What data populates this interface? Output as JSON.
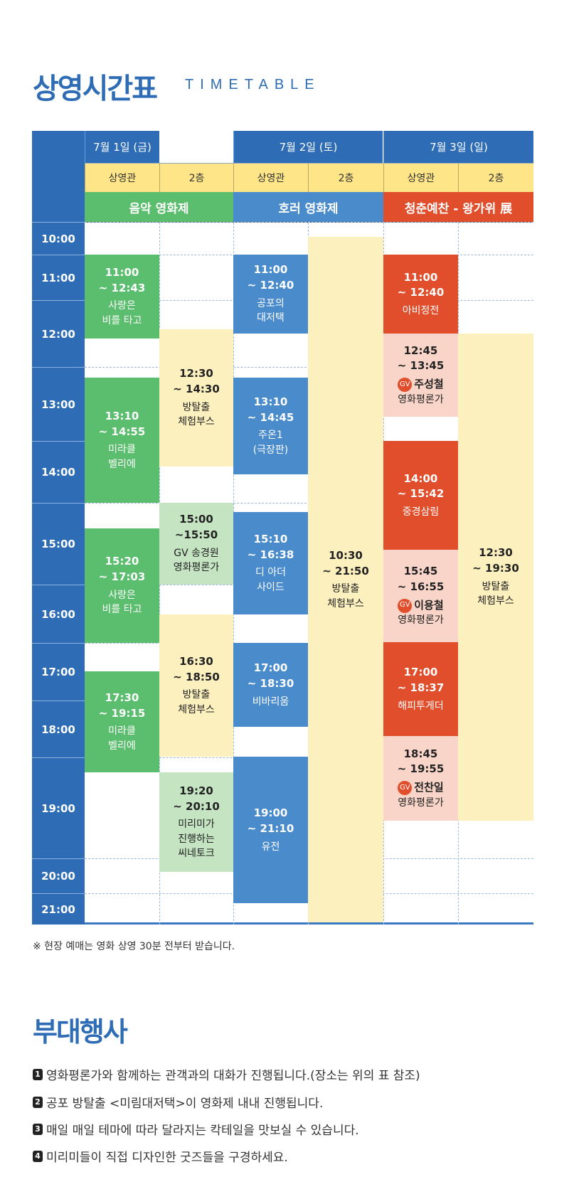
{
  "header": {
    "title": "상영시간표",
    "subtitle": "TIMETABLE"
  },
  "days": [
    {
      "date": "7월 1일 (금)",
      "venues": [
        "상영관",
        "2층"
      ],
      "festival": "음악 영화제"
    },
    {
      "date": "7월 2일 (토)",
      "venues": [
        "상영관",
        "2층"
      ],
      "festival": "호러 영화제"
    },
    {
      "date": "7월 3일 (일)",
      "venues": [
        "상영관",
        "2층"
      ],
      "festival": "청춘예찬 - 왕가위 展"
    }
  ],
  "colors": {
    "header_blue": "#2e6db5",
    "music_green": "#5bbd6e",
    "horror_blue": "#4a8bcc",
    "youth_red": "#e04e2c",
    "venue_yellow": "#fde588",
    "booth_yellow": "#fdf0bf",
    "talk_green": "#c4e4c2",
    "gv_pink": "#f8d5c8"
  },
  "hours": [
    "10:00",
    "11:00",
    "12:00",
    "13:00",
    "14:00",
    "15:00",
    "16:00",
    "17:00",
    "18:00",
    "19:00",
    "20:00",
    "21:00"
  ],
  "blocks": [
    {
      "style": "green",
      "start": "11:00",
      "end": "~ 12:43",
      "lines": [
        "사랑은",
        "비를 타고"
      ]
    },
    {
      "style": "green",
      "start": "13:10",
      "end": "~ 14:55",
      "lines": [
        "미라클",
        "벨리에"
      ]
    },
    {
      "style": "green",
      "start": "15:20",
      "end": "~ 17:03",
      "lines": [
        "사랑은",
        "비를 타고"
      ]
    },
    {
      "style": "green",
      "start": "17:30",
      "end": "~ 19:15",
      "lines": [
        "미라클",
        "벨리에"
      ]
    },
    {
      "style": "yellow",
      "start": "12:30",
      "end": "~ 14:30",
      "lines": [
        "방탈출",
        "체험부스"
      ]
    },
    {
      "style": "lgreen",
      "start": "15:00",
      "end": "~15:50",
      "lines": [
        "GV 송경원",
        "영화평론가"
      ]
    },
    {
      "style": "yellow",
      "start": "16:30",
      "end": "~ 18:50",
      "lines": [
        "방탈출",
        "체험부스"
      ]
    },
    {
      "style": "lgreen",
      "start": "19:20",
      "end": "~ 20:10",
      "lines": [
        "미리미가",
        "진행하는",
        "씨네토크"
      ]
    },
    {
      "style": "blue",
      "start": "11:00",
      "end": "~ 12:40",
      "lines": [
        "공포의",
        "대저택"
      ]
    },
    {
      "style": "blue",
      "start": "13:10",
      "end": "~ 14:45",
      "lines": [
        "주온1",
        "(극장판)"
      ]
    },
    {
      "style": "blue",
      "start": "15:10",
      "end": "~ 16:38",
      "lines": [
        "디 아더",
        "사이드"
      ]
    },
    {
      "style": "blue",
      "start": "17:00",
      "end": "~ 18:30",
      "lines": [
        "비바리움"
      ]
    },
    {
      "style": "blue",
      "start": "19:00",
      "end": "~ 21:10",
      "lines": [
        "유전"
      ]
    },
    {
      "style": "yellow",
      "start": "10:30",
      "end": "~ 21:50",
      "lines": [
        "방탈출",
        "체험부스"
      ]
    },
    {
      "style": "red",
      "start": "11:00",
      "end": "~ 12:40",
      "lines": [
        "아비정전"
      ]
    },
    {
      "style": "pink",
      "start": "12:45",
      "end": "~ 13:45",
      "gv": "GV",
      "guest": "주성철",
      "lines": [
        "영화평론가"
      ]
    },
    {
      "style": "red",
      "start": "14:00",
      "end": "~ 15:42",
      "lines": [
        "중경삼림"
      ]
    },
    {
      "style": "pink",
      "start": "15:45",
      "end": "~ 16:55",
      "gv": "GV",
      "guest": "이용철",
      "lines": [
        "영화평론가"
      ]
    },
    {
      "style": "red",
      "start": "17:00",
      "end": "~ 18:37",
      "lines": [
        "해피투게더"
      ]
    },
    {
      "style": "pink",
      "start": "18:45",
      "end": "~ 19:55",
      "gv": "GV",
      "guest": "전찬일",
      "lines": [
        "영화평론가"
      ]
    },
    {
      "style": "yellow",
      "start": "12:30",
      "end": "~ 19:30",
      "lines": [
        "방탈출",
        "체험부스"
      ]
    }
  ],
  "note": "※  현장 예매는 영화 상영 30분 전부터 받습니다.",
  "events": {
    "title": "부대행사",
    "items": [
      {
        "num": "1",
        "text": "영화평론가와 함께하는 관객과의 대화가 진행됩니다.(장소는 위의 표 참조)"
      },
      {
        "num": "2",
        "text": "공포 방탈출 <미림대저택>이 영화제 내내 진행됩니다."
      },
      {
        "num": "3",
        "text": "매일 매일 테마에 따라 달라지는 칵테일을 맛보실 수 있습니다."
      },
      {
        "num": "4",
        "text": "미리미들이 직접 디자인한 굿즈들을 구경하세요."
      }
    ]
  }
}
